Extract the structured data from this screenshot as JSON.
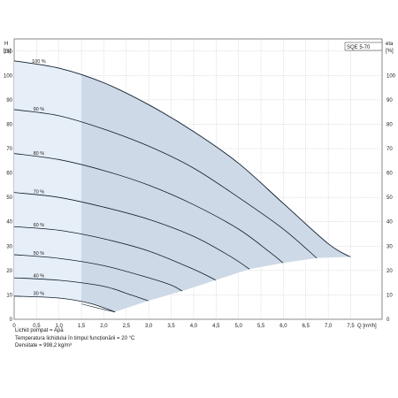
{
  "chart_data": {
    "type": "line",
    "model": "SQE 5-70",
    "left_axis": {
      "label_top": "H",
      "label_bottom": "[m]",
      "ticks": [
        0,
        10,
        20,
        30,
        40,
        50,
        60,
        70,
        80,
        90,
        100,
        110
      ],
      "range": [
        0,
        115
      ]
    },
    "right_axis": {
      "label_top": "eta",
      "label_bottom": "[%]",
      "ticks": [
        0,
        10,
        20,
        30,
        40,
        50,
        60,
        70,
        80,
        90,
        100
      ],
      "range": [
        0,
        115
      ]
    },
    "x_axis": {
      "label": "Q [m³/h]",
      "ticks": [
        "0",
        "0,5",
        "1,0",
        "1,5",
        "2,0",
        "2,5",
        "3,0",
        "3,5",
        "4,0",
        "4,5",
        "5,0",
        "5,5",
        "6,0",
        "6,5",
        "7,0",
        "7,5"
      ],
      "range": [
        0,
        8.2
      ]
    },
    "grid": true,
    "operating_region": {
      "q_min": 1.5
    },
    "series": [
      {
        "name": "100 %",
        "points": [
          [
            0,
            106
          ],
          [
            1,
            103
          ],
          [
            2,
            97
          ],
          [
            3,
            88
          ],
          [
            4,
            77
          ],
          [
            5,
            64
          ],
          [
            6,
            47.5
          ],
          [
            7,
            31
          ],
          [
            7.5,
            25.5
          ]
        ]
      },
      {
        "name": "90 %",
        "points": [
          [
            0,
            86
          ],
          [
            1,
            83.5
          ],
          [
            2,
            78
          ],
          [
            3,
            71
          ],
          [
            4,
            62
          ],
          [
            5,
            50
          ],
          [
            6,
            37
          ],
          [
            6.75,
            25
          ]
        ]
      },
      {
        "name": "80 %",
        "points": [
          [
            0,
            68
          ],
          [
            1,
            65.5
          ],
          [
            2,
            61
          ],
          [
            3,
            55
          ],
          [
            4,
            47
          ],
          [
            5,
            37
          ],
          [
            5.7,
            27.5
          ],
          [
            6,
            23
          ]
        ]
      },
      {
        "name": "70 %",
        "points": [
          [
            0,
            52
          ],
          [
            1,
            50
          ],
          [
            2,
            46
          ],
          [
            3,
            41
          ],
          [
            4,
            34
          ],
          [
            4.8,
            26
          ],
          [
            5.25,
            20.5
          ]
        ]
      },
      {
        "name": "60 %",
        "points": [
          [
            0,
            38
          ],
          [
            1,
            36.5
          ],
          [
            2,
            33
          ],
          [
            3,
            28
          ],
          [
            4,
            20.5
          ],
          [
            4.5,
            16
          ]
        ]
      },
      {
        "name": "50 %",
        "points": [
          [
            0,
            26.5
          ],
          [
            1,
            25
          ],
          [
            2,
            22
          ],
          [
            3,
            17
          ],
          [
            3.5,
            14
          ],
          [
            3.75,
            11.5
          ]
        ]
      },
      {
        "name": "40 %",
        "points": [
          [
            0,
            17
          ],
          [
            1,
            16
          ],
          [
            2,
            13.5
          ],
          [
            2.6,
            10
          ],
          [
            3,
            7.5
          ]
        ]
      },
      {
        "name": "30 %",
        "points": [
          [
            0,
            9.5
          ],
          [
            1,
            8.7
          ],
          [
            1.7,
            6.5
          ],
          [
            2.25,
            3
          ]
        ]
      }
    ],
    "min_flow_line": [
      [
        1.5,
        6.3
      ],
      [
        2,
        4
      ],
      [
        2.25,
        3
      ]
    ]
  },
  "notes": {
    "line1": "Lichid pompat = Apă",
    "line2": "Temperatura lichidului în timpul funcționării = 20 °C",
    "line3": "Densitate = 998,2 kg/m³"
  },
  "colors": {
    "fill": "#cdd9e6",
    "fill_light": "#e6eef7",
    "curve": "#0f1e2e",
    "grid": "#a8a8a8",
    "frame": "#555555"
  }
}
